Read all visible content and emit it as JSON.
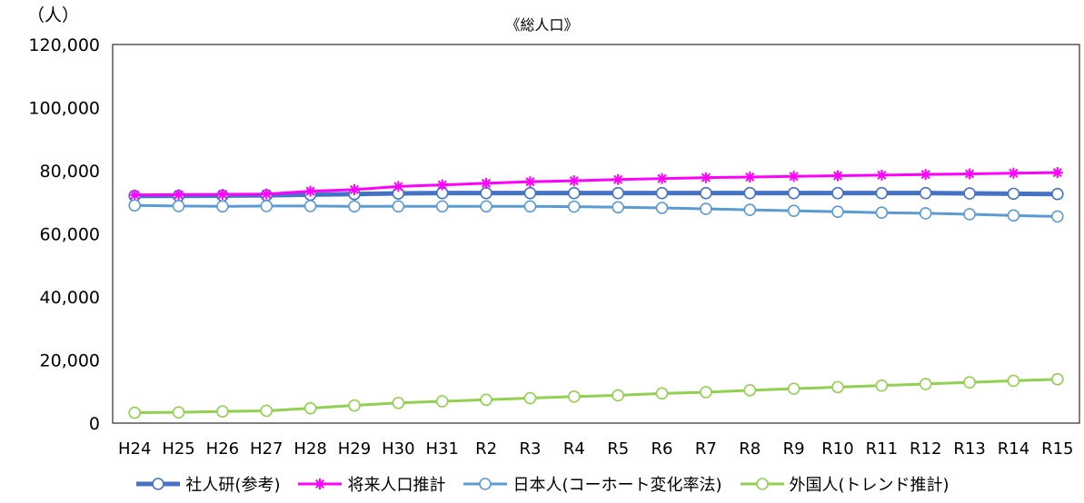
{
  "chart_data": {
    "type": "line",
    "title": "《総人口》",
    "unit_label": "（人）",
    "ylim": [
      0,
      120000
    ],
    "yticks": [
      0,
      20000,
      40000,
      60000,
      80000,
      100000,
      120000
    ],
    "ytick_labels": [
      "0",
      "20,000",
      "40,000",
      "60,000",
      "80,000",
      "100,000",
      "120,000"
    ],
    "categories": [
      "H24",
      "H25",
      "H26",
      "H27",
      "H28",
      "H29",
      "H30",
      "H31",
      "R2",
      "R3",
      "R4",
      "R5",
      "R6",
      "R7",
      "R8",
      "R9",
      "R10",
      "R11",
      "R12",
      "R13",
      "R14",
      "R15"
    ],
    "grid": false,
    "legend_position": "bottom",
    "series": [
      {
        "name": "社人研(参考)",
        "color": "#4472C4",
        "marker": "circle",
        "values": [
          72000,
          72000,
          72100,
          72200,
          72400,
          72600,
          72800,
          72900,
          72900,
          72900,
          72900,
          72900,
          72900,
          72900,
          72900,
          72900,
          72900,
          72900,
          72900,
          72800,
          72700,
          72600
        ]
      },
      {
        "name": "将来人口推計",
        "color": "#FF00FF",
        "marker": "asterisk",
        "values": [
          72300,
          72400,
          72500,
          72600,
          73500,
          74000,
          75000,
          75500,
          76000,
          76500,
          76800,
          77200,
          77500,
          77800,
          78000,
          78200,
          78400,
          78600,
          78800,
          79000,
          79200,
          79400
        ]
      },
      {
        "name": "日本人(コーホート変化率法)",
        "color": "#5B9BD5",
        "marker": "circle",
        "values": [
          69000,
          68800,
          68700,
          68800,
          68800,
          68700,
          68700,
          68700,
          68700,
          68700,
          68600,
          68400,
          68200,
          67900,
          67600,
          67300,
          67000,
          66700,
          66500,
          66200,
          65800,
          65500
        ]
      },
      {
        "name": "外国人(トレンド推計)",
        "color": "#92D050",
        "marker": "circle",
        "values": [
          3300,
          3400,
          3700,
          3900,
          4700,
          5600,
          6400,
          6900,
          7400,
          7900,
          8400,
          8800,
          9400,
          9800,
          10400,
          10900,
          11400,
          11900,
          12400,
          12900,
          13400,
          13900
        ]
      }
    ]
  }
}
